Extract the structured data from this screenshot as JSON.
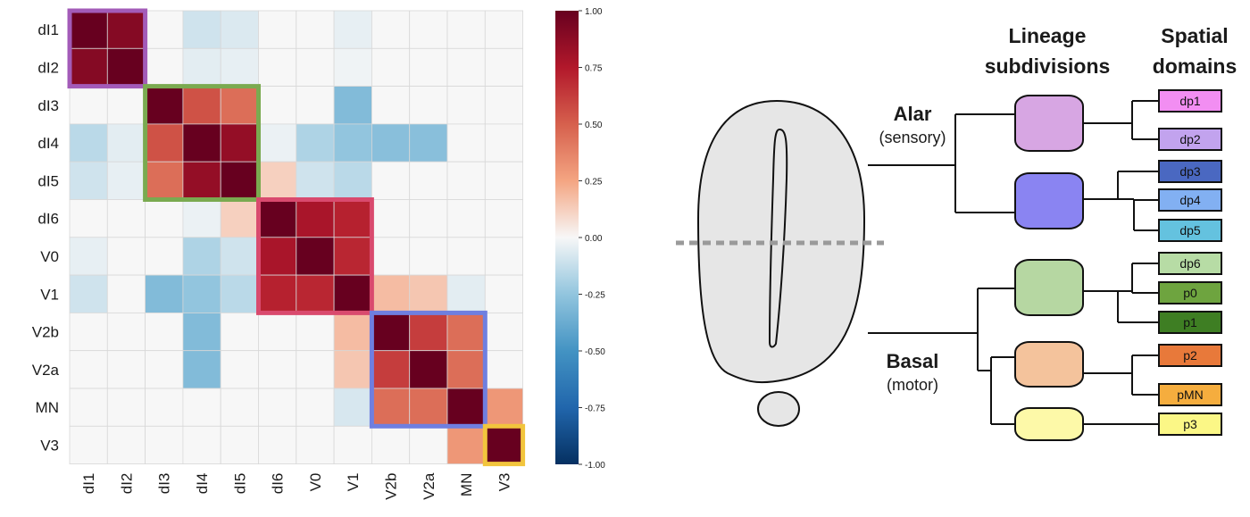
{
  "chart_data": {
    "type": "heatmap",
    "rows": [
      "dI1",
      "dI2",
      "dI3",
      "dI4",
      "dI5",
      "dI6",
      "V0",
      "V1",
      "V2b",
      "V2a",
      "MN",
      "V3"
    ],
    "cols": [
      "dI1",
      "dI2",
      "dI3",
      "dI4",
      "dI5",
      "dI6",
      "V0",
      "V1",
      "V2b",
      "V2a",
      "MN",
      "V3"
    ],
    "values": [
      [
        1.0,
        0.9,
        0.0,
        -0.1,
        -0.07,
        0.0,
        0.0,
        -0.04,
        0.0,
        0.0,
        0.0,
        0.0
      ],
      [
        0.9,
        1.0,
        0.0,
        -0.05,
        -0.04,
        0.0,
        0.0,
        -0.02,
        0.0,
        0.0,
        0.0,
        0.0
      ],
      [
        0.0,
        0.0,
        1.0,
        0.55,
        0.45,
        0.0,
        0.0,
        -0.3,
        0.0,
        0.0,
        0.0,
        0.0
      ],
      [
        -0.15,
        -0.05,
        0.55,
        1.0,
        0.85,
        -0.03,
        -0.18,
        -0.25,
        -0.28,
        -0.28,
        0.0,
        0.0
      ],
      [
        -0.1,
        -0.04,
        0.45,
        0.85,
        1.0,
        0.12,
        -0.1,
        -0.15,
        0.0,
        0.0,
        0.0,
        0.0
      ],
      [
        0.0,
        0.0,
        0.0,
        -0.03,
        0.12,
        1.0,
        0.78,
        0.72,
        0.0,
        0.0,
        0.0,
        0.0
      ],
      [
        -0.04,
        0.0,
        0.0,
        -0.18,
        -0.1,
        0.78,
        1.0,
        0.7,
        0.0,
        0.0,
        0.0,
        0.0
      ],
      [
        -0.1,
        0.0,
        -0.3,
        -0.25,
        -0.15,
        0.72,
        0.7,
        1.0,
        0.18,
        0.15,
        -0.05,
        0.0
      ],
      [
        0.0,
        0.0,
        0.0,
        -0.3,
        0.0,
        0.0,
        0.0,
        0.18,
        1.0,
        0.62,
        0.45,
        0.0
      ],
      [
        0.0,
        0.0,
        0.0,
        -0.3,
        0.0,
        0.0,
        0.0,
        0.15,
        0.62,
        1.0,
        0.45,
        0.0
      ],
      [
        0.0,
        0.0,
        0.0,
        0.0,
        0.0,
        0.0,
        0.0,
        -0.08,
        0.45,
        0.45,
        1.0,
        0.3
      ],
      [
        0.0,
        0.0,
        0.0,
        0.0,
        0.0,
        0.0,
        0.0,
        0.0,
        0.0,
        0.0,
        0.3,
        1.0
      ]
    ],
    "vmin": -1.0,
    "vmax": 1.0,
    "colorbar_ticks": [
      "1.00",
      "0.75",
      "0.50",
      "0.25",
      "0.00",
      "-0.25",
      "-0.50",
      "-0.75",
      "-1.00"
    ],
    "cluster_boxes": [
      {
        "start": 0,
        "end": 1,
        "color": "#a35bb8"
      },
      {
        "start": 2,
        "end": 4,
        "color": "#7aaa50"
      },
      {
        "start": 5,
        "end": 7,
        "color": "#d94a6e"
      },
      {
        "start": 8,
        "end": 10,
        "color": "#6f7fe0"
      },
      {
        "start": 11,
        "end": 11,
        "color": "#f2c53d"
      }
    ]
  },
  "schematic": {
    "header_lineage_line1": "Lineage",
    "header_lineage_line2": "subdivisions",
    "header_spatial_line1": "Spatial",
    "header_spatial_line2": "domains",
    "alar_label": "Alar",
    "alar_sub": "(sensory)",
    "basal_label": "Basal",
    "basal_sub": "(motor)",
    "lineages": [
      {
        "color": "#d7a6e3"
      },
      {
        "color": "#8a84f2"
      },
      {
        "color": "#b6d7a2"
      },
      {
        "color": "#f4c39c"
      },
      {
        "color": "#fdf9a8"
      }
    ],
    "domains": [
      {
        "label": "dp1",
        "color": "#f28ef2"
      },
      {
        "label": "dp2",
        "color": "#c2a3ee"
      },
      {
        "label": "dp3",
        "color": "#4a68c1"
      },
      {
        "label": "dp4",
        "color": "#82b0f2"
      },
      {
        "label": "dp5",
        "color": "#64c2df"
      },
      {
        "label": "dp6",
        "color": "#b7dca5"
      },
      {
        "label": "p0",
        "color": "#6ea43f"
      },
      {
        "label": "p1",
        "color": "#3e7e23"
      },
      {
        "label": "p2",
        "color": "#e8793a"
      },
      {
        "label": "pMN",
        "color": "#f5ad3e"
      },
      {
        "label": "p3",
        "color": "#fbf786"
      }
    ]
  }
}
